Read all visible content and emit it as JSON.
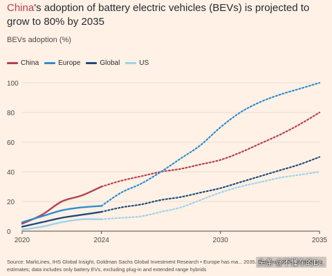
{
  "title": {
    "highlight": "China",
    "rest": "'s adoption of battery electric vehicles (BEVs) is projected to grow to 80% by 2035"
  },
  "subtitle": "BEVs adoption (%)",
  "footer": {
    "text": "Source: MarkLines, IHS Global Insight, Goldman Sachs Global Investment Research • Europe has ma... 2035. Data from 2024 onwards are estimates; data includes only battery EVs, excluding plug-in and extended range hybrids"
  },
  "watermark": "头条 @不懂车的Dε.",
  "colors": {
    "China": "#b5404f",
    "Europe": "#2e8ccf",
    "Global": "#1e4a7a",
    "US": "#9ed2ec",
    "grid": "#e3d6c9",
    "axis": "#4d4845",
    "background": "#fff1e5"
  },
  "chart_data": {
    "type": "line",
    "ylabel": "BEVs adoption (%)",
    "xlim": [
      2020,
      2035
    ],
    "ylim": [
      0,
      100
    ],
    "xticks": [
      "2020",
      "2024",
      "2030",
      "2035"
    ],
    "yticks": [
      "0",
      "20",
      "40",
      "60",
      "80",
      "100"
    ],
    "grid": true,
    "legend_position": "top-left",
    "estimate_from": 2024,
    "series": [
      {
        "name": "China",
        "x": [
          2020,
          2021,
          2022,
          2023,
          2024,
          2025,
          2026,
          2027,
          2028,
          2029,
          2030,
          2031,
          2032,
          2033,
          2034,
          2035
        ],
        "y": [
          5,
          11,
          20,
          24,
          30,
          34,
          37,
          40,
          42,
          45,
          48,
          53,
          59,
          65,
          72,
          80
        ]
      },
      {
        "name": "Europe",
        "x": [
          2020,
          2021,
          2022,
          2023,
          2024,
          2025,
          2026,
          2027,
          2028,
          2029,
          2030,
          2031,
          2032,
          2033,
          2034,
          2035
        ],
        "y": [
          6,
          10,
          14,
          16,
          17,
          26,
          32,
          40,
          49,
          58,
          70,
          80,
          87,
          92,
          96,
          100
        ]
      },
      {
        "name": "Global",
        "x": [
          2020,
          2021,
          2022,
          2023,
          2024,
          2025,
          2026,
          2027,
          2028,
          2029,
          2030,
          2031,
          2032,
          2033,
          2034,
          2035
        ],
        "y": [
          3,
          6,
          9,
          11,
          13,
          16,
          18,
          21,
          23,
          26,
          29,
          33,
          37,
          41,
          45,
          50
        ]
      },
      {
        "name": "US",
        "x": [
          2020,
          2021,
          2022,
          2023,
          2024,
          2025,
          2026,
          2027,
          2028,
          2029,
          2030,
          2031,
          2032,
          2033,
          2034,
          2035
        ],
        "y": [
          1,
          3,
          6,
          8,
          8,
          9,
          10,
          13,
          16,
          21,
          26,
          30,
          33,
          36,
          38,
          40
        ]
      }
    ]
  }
}
